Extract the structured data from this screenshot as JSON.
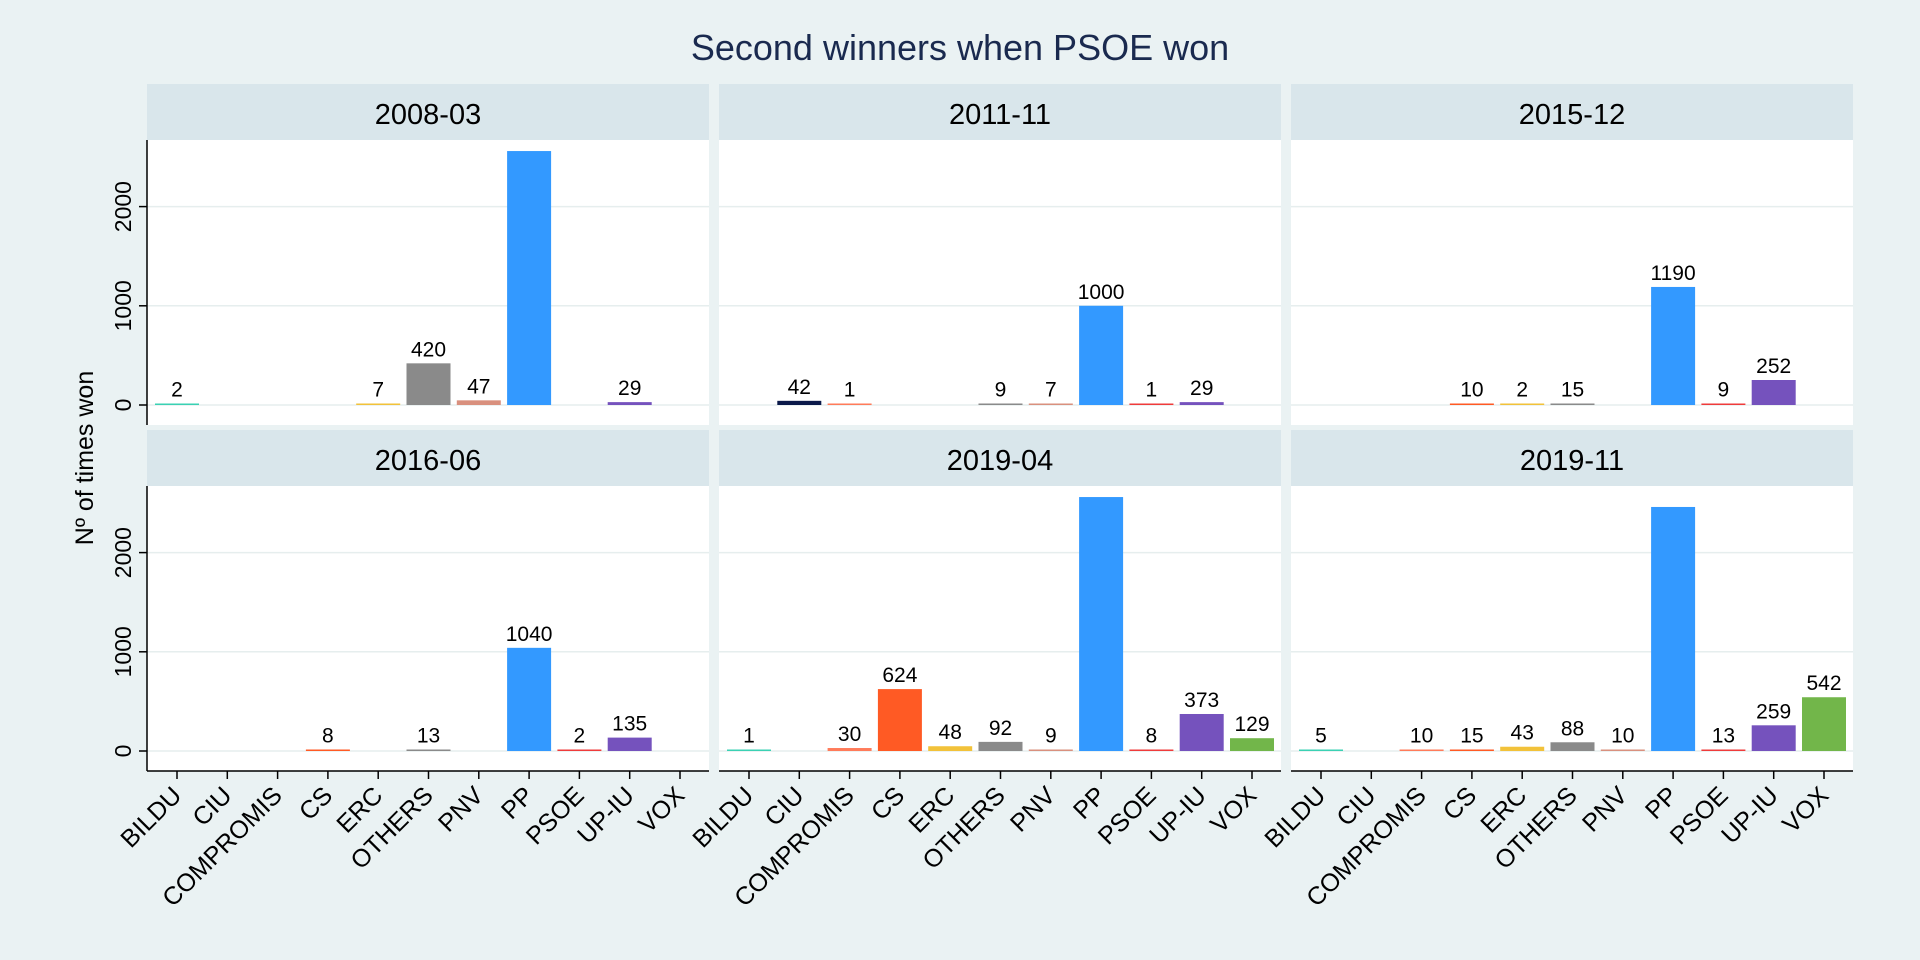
{
  "chart_data": {
    "type": "bar",
    "title": "Second winners when PSOE won",
    "ylabel": "Nº of times won",
    "xlabel": "",
    "ylim": [
      0,
      2700
    ],
    "yticks": [
      0,
      1000,
      2000
    ],
    "grid": true,
    "categories": [
      "BILDU",
      "CIU",
      "COMPROMIS",
      "CS",
      "ERC",
      "OTHERS",
      "PNV",
      "PP",
      "PSOE",
      "UP-IU",
      "VOX"
    ],
    "colors": {
      "BILDU": "#3ad1b3",
      "CIU": "#0b1a4a",
      "COMPROMIS": "#ff7b5a",
      "CS": "#ff5a24",
      "ERC": "#f2c23a",
      "OTHERS": "#8a8a8a",
      "PNV": "#d9907e",
      "PP": "#3399ff",
      "PSOE": "#ef3b3b",
      "UP-IU": "#7552bd",
      "VOX": "#72b64a"
    },
    "panels": [
      {
        "label": "2008-03",
        "values": {
          "BILDU": 2,
          "ERC": 7,
          "OTHERS": 420,
          "PNV": 47,
          "PP": 2560,
          "UP-IU": 29
        }
      },
      {
        "label": "2011-11",
        "values": {
          "CIU": 42,
          "COMPROMIS": 1,
          "OTHERS": 9,
          "PNV": 7,
          "PP": 1000,
          "PSOE": 1,
          "UP-IU": 29
        }
      },
      {
        "label": "2015-12",
        "values": {
          "CS": 10,
          "ERC": 2,
          "OTHERS": 15,
          "PP": 1190,
          "PSOE": 9,
          "UP-IU": 252
        }
      },
      {
        "label": "2016-06",
        "values": {
          "CS": 8,
          "OTHERS": 13,
          "PP": 1040,
          "PSOE": 2,
          "UP-IU": 135
        }
      },
      {
        "label": "2019-04",
        "values": {
          "BILDU": 1,
          "COMPROMIS": 30,
          "CS": 624,
          "ERC": 48,
          "OTHERS": 92,
          "PNV": 9,
          "PP": 2560,
          "PSOE": 8,
          "UP-IU": 373,
          "VOX": 129
        }
      },
      {
        "label": "2019-11",
        "values": {
          "BILDU": 5,
          "COMPROMIS": 10,
          "CS": 15,
          "ERC": 43,
          "OTHERS": 88,
          "PNV": 10,
          "PP": 2460,
          "PSOE": 13,
          "UP-IU": 259,
          "VOX": 542
        }
      }
    ]
  }
}
